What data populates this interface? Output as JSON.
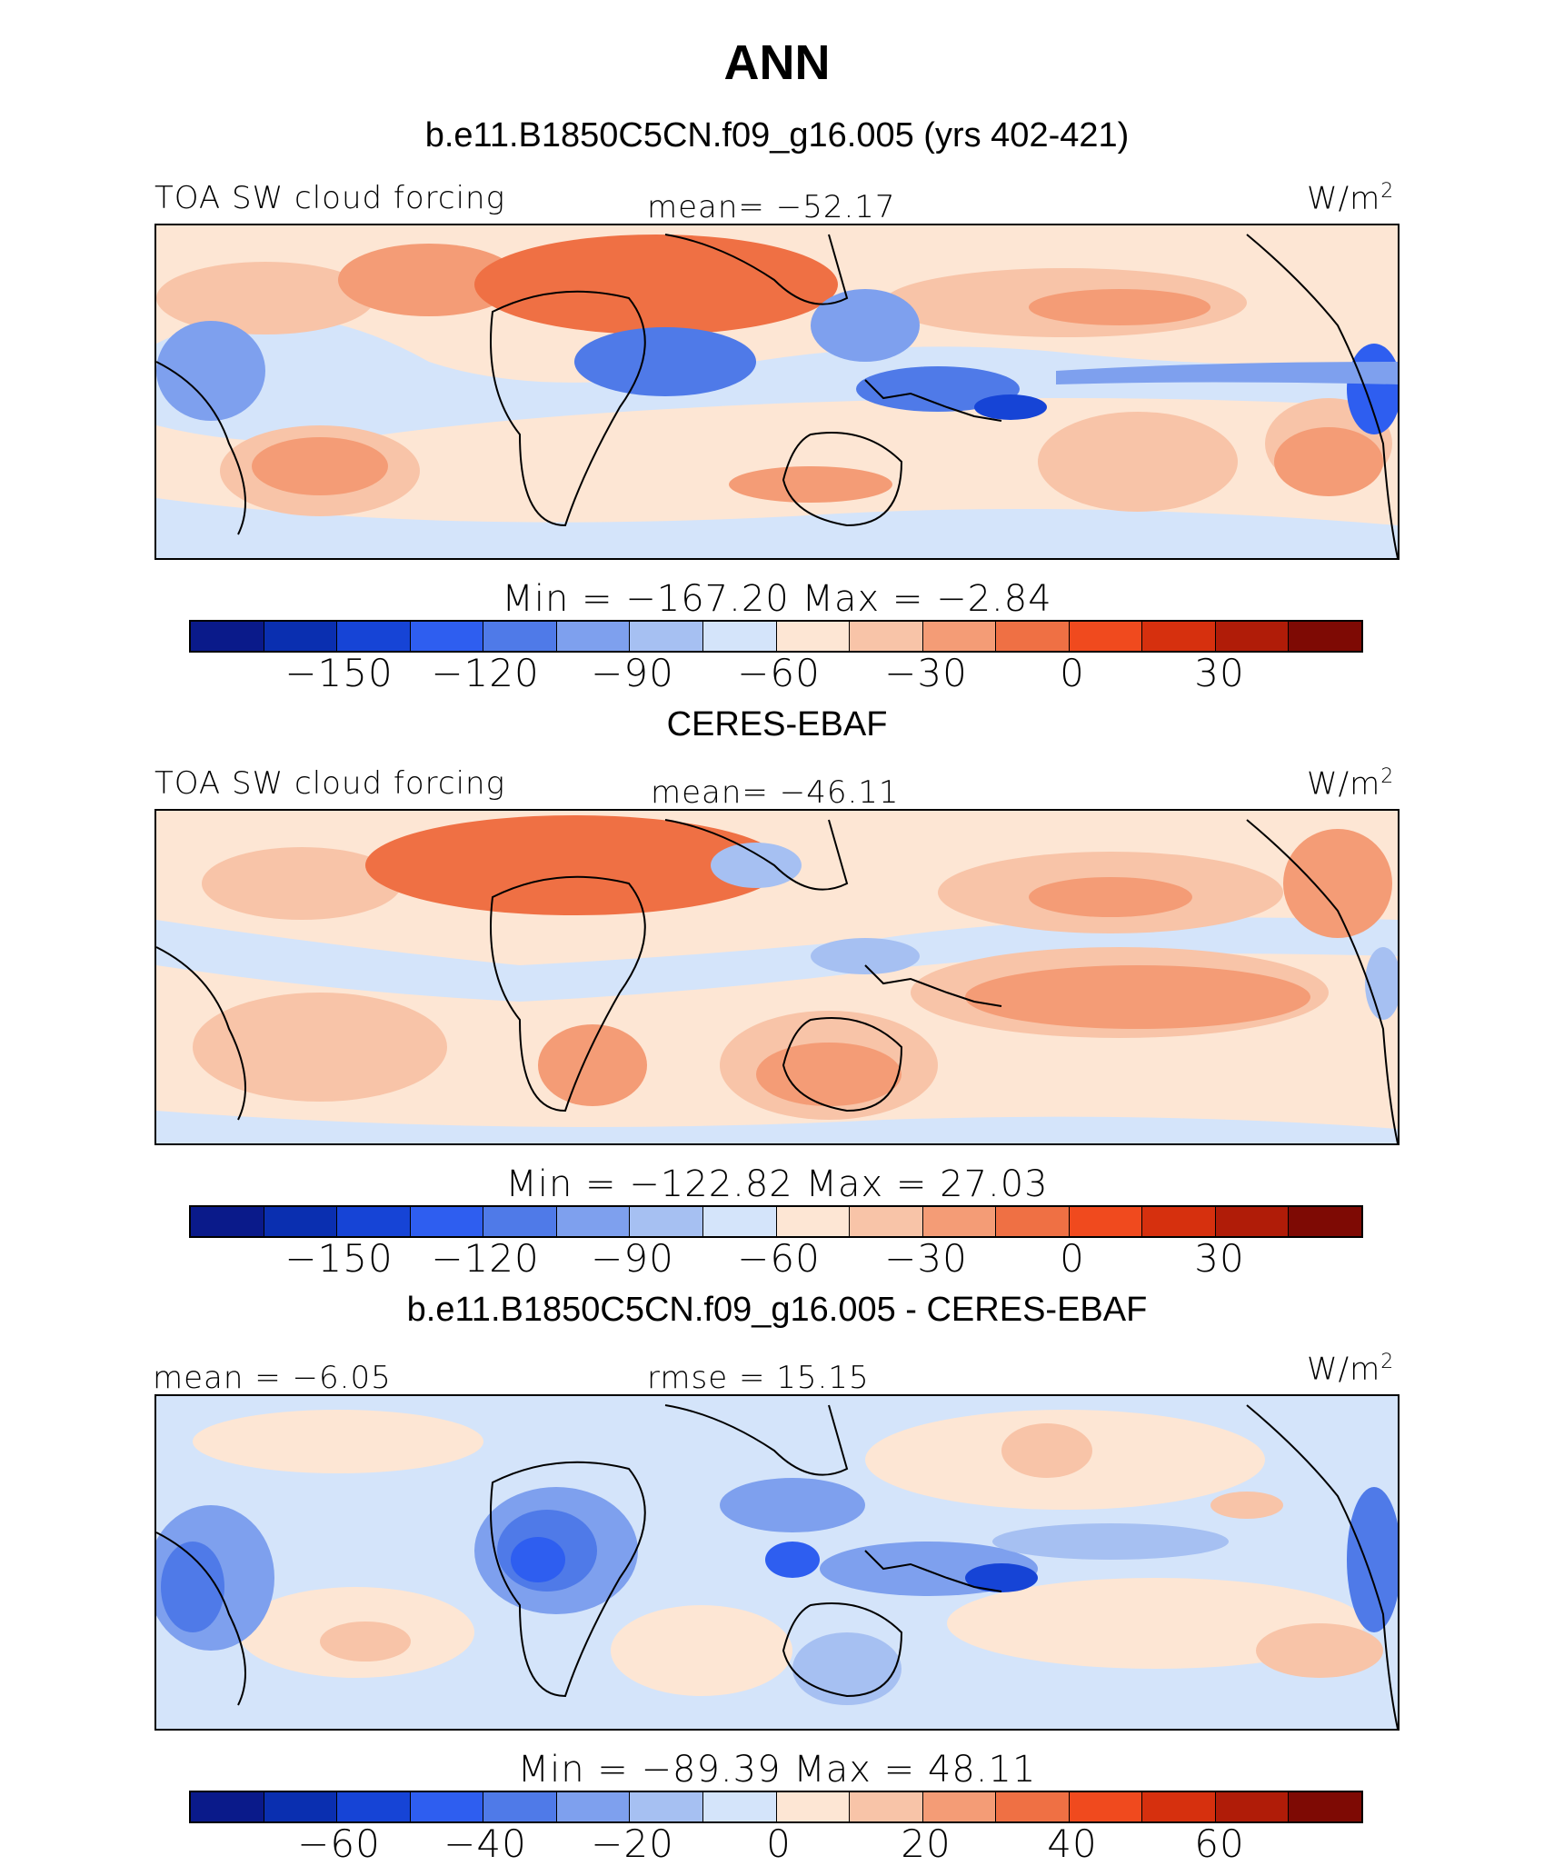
{
  "title": "ANN",
  "colors": [
    "#0a1a8a",
    "#0a2fb0",
    "#1644d6",
    "#2e5ef0",
    "#4f7ae8",
    "#7ea0ee",
    "#a6c0f2",
    "#d4e4fa",
    "#fde6d4",
    "#f8c4a8",
    "#f49c76",
    "#ef7044",
    "#f04a1e",
    "#d6300e",
    "#b01c08",
    "#7e0a04"
  ],
  "panels": [
    {
      "heading": "b.e11.B1850C5CN.f09_g16.005 (yrs 402-421)",
      "variable": "TOA SW cloud forcing",
      "stat": "mean=  −52.17",
      "units": "W/m",
      "units_sup": "2",
      "minmax": "Min  =  −167.20  Max  =    −2.84",
      "ticks": [
        "−150",
        "−120",
        "−90",
        "−60",
        "−30",
        "0",
        "30"
      ]
    },
    {
      "heading": "CERES-EBAF",
      "variable": "TOA SW cloud forcing",
      "stat": "mean=  −46.11",
      "units": "W/m",
      "units_sup": "2",
      "minmax": "Min  =  −122.82  Max  =    27.03",
      "ticks": [
        "−150",
        "−120",
        "−90",
        "−60",
        "−30",
        "0",
        "30"
      ]
    },
    {
      "heading": "b.e11.B1850C5CN.f09_g16.005 - CERES-EBAF",
      "variable": "mean  =   −6.05",
      "stat": "rmse  =   15.15",
      "units": "W/m",
      "units_sup": "2",
      "minmax": "Min  =  −89.39  Max  =   48.11",
      "ticks": [
        "−60",
        "−40",
        "−20",
        "0",
        "20",
        "40",
        "60"
      ]
    }
  ]
}
